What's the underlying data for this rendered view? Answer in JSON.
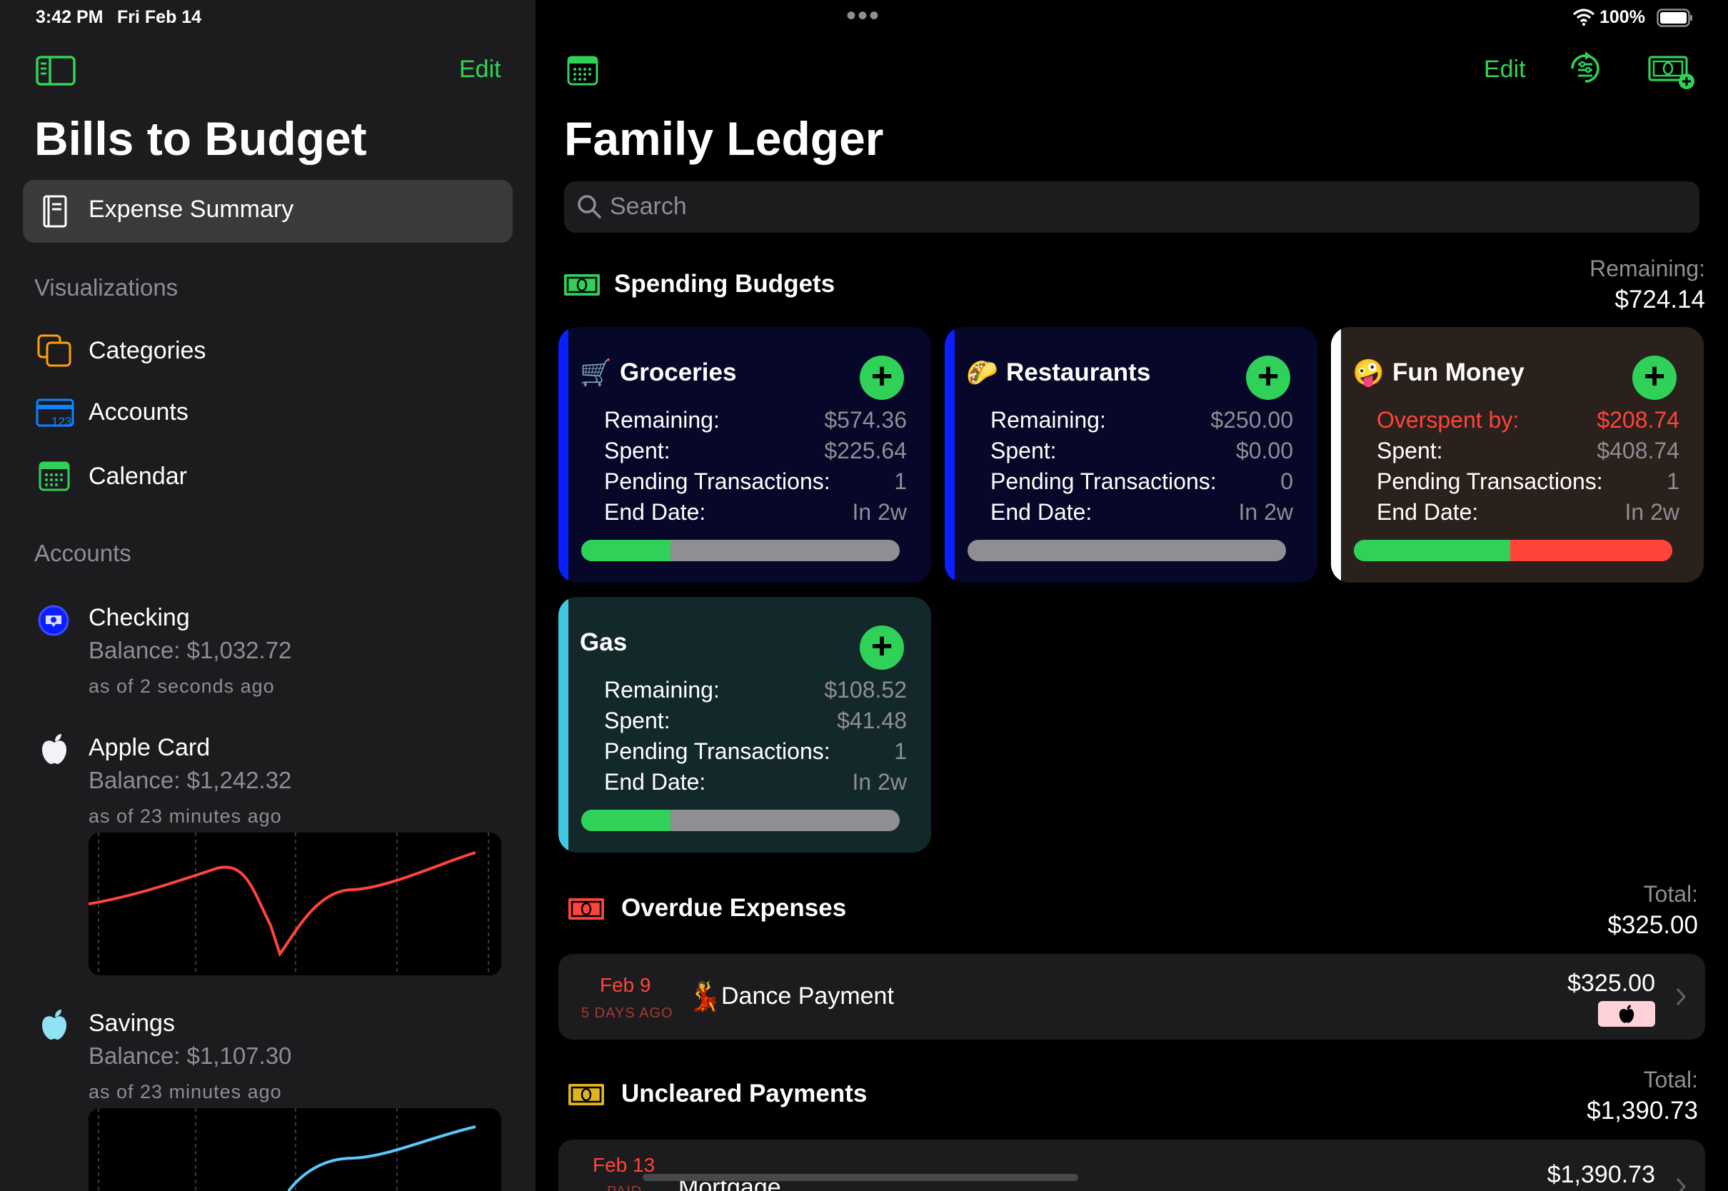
{
  "status_bar": {
    "time": "3:42 PM",
    "date": "Fri Feb 14",
    "dots": "•••",
    "battery": "100%"
  },
  "sidebar": {
    "edit_label": "Edit",
    "title": "Bills to Budget",
    "selected_item": "Expense Summary",
    "visualizations_header": "Visualizations",
    "nav_items": [
      {
        "label": "Categories",
        "icon": "categories-icon"
      },
      {
        "label": "Accounts",
        "icon": "accounts-card-icon"
      },
      {
        "label": "Calendar",
        "icon": "calendar-icon"
      }
    ],
    "accounts_header": "Accounts",
    "accounts": [
      {
        "name": "Checking",
        "balance": "Balance: $1,032.72",
        "as_of": "as of 2 seconds ago",
        "icon": "bank-icon"
      },
      {
        "name": "Apple Card",
        "balance": "Balance: $1,242.32",
        "as_of": "as of 23 minutes ago",
        "icon": "apple-icon",
        "spark_color": "#ff453a"
      },
      {
        "name": "Savings",
        "balance": "Balance: $1,107.30",
        "as_of": "as of 23 minutes ago",
        "icon": "apple-icon",
        "spark_color": "#5ac8fa"
      }
    ]
  },
  "main": {
    "edit_label": "Edit",
    "title": "Family Ledger",
    "search_placeholder": "Search",
    "spending": {
      "title": "Spending Budgets",
      "remaining_label": "Remaining:",
      "remaining_value": "$724.14",
      "cards": [
        {
          "title": "Groceries",
          "emoji": "🛒",
          "accent": "#0a1fff",
          "bg": "#07072a",
          "rows": [
            [
              "Remaining:",
              "$574.36"
            ],
            [
              "Spent:",
              "$225.64"
            ],
            [
              "Pending Transactions:",
              "1"
            ],
            [
              "End Date:",
              "In 2w"
            ]
          ],
          "progress": 0.28,
          "over": 0
        },
        {
          "title": "Restaurants",
          "emoji": "🌮",
          "accent": "#0a1fff",
          "bg": "#07072a",
          "rows": [
            [
              "Remaining:",
              "$250.00"
            ],
            [
              "Spent:",
              "$0.00"
            ],
            [
              "Pending Transactions:",
              "0"
            ],
            [
              "End Date:",
              "In 2w"
            ]
          ],
          "progress": 0,
          "over": 0
        },
        {
          "title": "Fun Money",
          "emoji": "🤪",
          "accent": "#ffffff",
          "bg": "#2a201c",
          "rows": [
            [
              "Overspent by:",
              "$208.74"
            ],
            [
              "Spent:",
              "$408.74"
            ],
            [
              "Pending Transactions:",
              "1"
            ],
            [
              "End Date:",
              "In 2w"
            ]
          ],
          "progress": 0.49,
          "over": 0.51
        },
        {
          "title": "Gas",
          "emoji": "",
          "accent": "#40c8e0",
          "bg": "#13282b",
          "rows": [
            [
              "Remaining:",
              "$108.52"
            ],
            [
              "Spent:",
              "$41.48"
            ],
            [
              "Pending Transactions:",
              "1"
            ],
            [
              "End Date:",
              "In 2w"
            ]
          ],
          "progress": 0.28,
          "over": 0
        }
      ]
    },
    "overdue": {
      "title": "Overdue Expenses",
      "total_label": "Total:",
      "total_value": "$325.00",
      "items": [
        {
          "date": "Feb 9",
          "relative": "5 DAYS AGO",
          "emoji": "💃",
          "name": "Dance Payment",
          "amount": "$325.00",
          "badge_icon": "apple-icon"
        }
      ]
    },
    "uncleared": {
      "title": "Uncleared Payments",
      "total_label": "Total:",
      "total_value": "$1,390.73",
      "items": [
        {
          "date": "Feb 13",
          "relative": "PAID",
          "name": "Mortgage",
          "amount": "$1,390.73"
        }
      ]
    },
    "colors": {
      "accent": "#30d158",
      "danger": "#ff453a",
      "warning": "#e0b320"
    }
  }
}
